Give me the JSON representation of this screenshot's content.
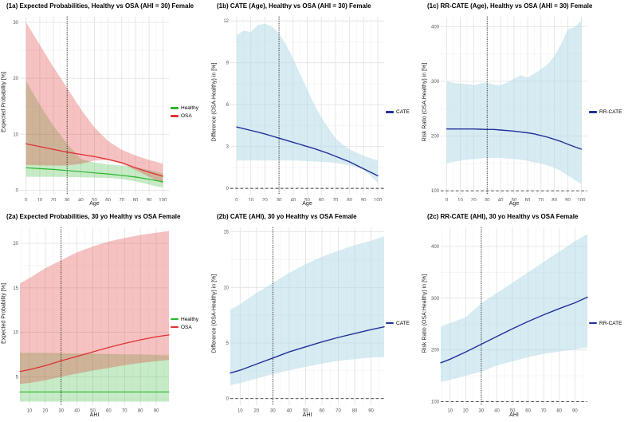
{
  "style": {
    "grid_major": "#e4e4e4",
    "grid_minor": "#f2f2f2",
    "tick_color": "#555555",
    "vline_color": "#1a1a1a",
    "hline_color": "#3a3a3a",
    "healthy_color": "#2db52d",
    "osa_color": "#e03131",
    "cate_color": "#22309b",
    "ribbon_blue": "#ADD8E6"
  },
  "chart_data": {
    "type": "line",
    "layout": "2 rows x 3 cols, ribbons = confidence bands, dotted vline at x=30 in all panels, legend right of each panel",
    "panels": [
      {
        "id": "1a",
        "title": "(1a) Expected Probabilities, Healthy vs OSA (AHI = 30) Female",
        "xlab": "Age",
        "ylab": "Expected Probability [%]",
        "x_domain": [
          -4.5,
          104.5
        ],
        "y_domain": [
          -0.8,
          31
        ],
        "x_ticks": [
          0,
          10,
          20,
          30,
          40,
          50,
          60,
          70,
          80,
          90,
          100
        ],
        "y_ticks": [
          0,
          10,
          20,
          30
        ],
        "vline": 30,
        "hline": null,
        "x": [
          0,
          10,
          20,
          30,
          40,
          50,
          60,
          70,
          80,
          90,
          100
        ],
        "ribbons": [
          {
            "name": "healthy-band",
            "color": "#2db52d",
            "opacity": 0.27,
            "lo": [
              2.4,
              2.4,
              2.4,
              2.35,
              2.3,
              2.25,
              2.2,
              2.0,
              1.6,
              1.0,
              0.45
            ],
            "hi": [
              19.5,
              15.3,
              11.5,
              8.3,
              5.6,
              4.9,
              4.6,
              4.4,
              4.1,
              3.6,
              3.0
            ]
          },
          {
            "name": "osa-band",
            "color": "#e03131",
            "opacity": 0.3,
            "lo": [
              4.5,
              4.45,
              4.4,
              4.4,
              4.7,
              5.3,
              5.35,
              4.7,
              3.6,
              2.4,
              1.2
            ],
            "hi": [
              30,
              26,
              22,
              18.3,
              14.5,
              11.2,
              8.8,
              7.2,
              6.2,
              5.4,
              4.7
            ]
          }
        ],
        "lines": [
          {
            "name": "Healthy",
            "color": "#2db52d",
            "width": 1.2,
            "y": [
              4.0,
              3.85,
              3.7,
              3.5,
              3.3,
              3.1,
              2.9,
              2.65,
              2.35,
              1.95,
              1.5
            ]
          },
          {
            "name": "OSA",
            "color": "#e03131",
            "width": 1.3,
            "y": [
              8.3,
              7.8,
              7.3,
              6.8,
              6.4,
              6.0,
              5.5,
              4.9,
              4.0,
              3.2,
              2.5
            ]
          }
        ],
        "legend": [
          {
            "label": "Healthy",
            "color": "#2db52d"
          },
          {
            "label": "OSA",
            "color": "#e03131"
          }
        ]
      },
      {
        "id": "1b",
        "title": "(1b) CATE (Age), Healthy vs OSA (AHI = 30) Female",
        "xlab": "Age",
        "ylab": "Difference (OSA-Healthy) in [%]",
        "x_domain": [
          -4.5,
          104.5
        ],
        "y_domain": [
          -0.45,
          12.3
        ],
        "x_ticks": [
          0,
          10,
          20,
          30,
          40,
          50,
          60,
          70,
          80,
          90,
          100
        ],
        "y_ticks": [
          0,
          3,
          6,
          9,
          12
        ],
        "vline": 30,
        "hline": 0,
        "x": [
          0,
          5,
          10,
          15,
          20,
          25,
          30,
          35,
          40,
          45,
          50,
          55,
          60,
          65,
          70,
          75,
          80,
          85,
          90,
          95,
          100
        ],
        "ribbons": [
          {
            "name": "cate-band",
            "color": "#ADD8E6",
            "opacity": 0.5,
            "lo": [
              2.0,
              2.0,
              2.0,
              2.0,
              2.0,
              2.0,
              2.0,
              2.0,
              2.0,
              1.98,
              1.95,
              1.93,
              1.9,
              1.87,
              1.82,
              1.75,
              1.65,
              1.5,
              1.3,
              0.9,
              0.4
            ],
            "hi": [
              11.0,
              11.3,
              11.2,
              11.7,
              11.8,
              11.6,
              11.1,
              10.3,
              9.3,
              8.2,
              7.1,
              6.0,
              5.1,
              4.3,
              3.6,
              3.15,
              2.8,
              2.55,
              2.35,
              2.15,
              2.0
            ]
          }
        ],
        "lines": [
          {
            "name": "CATE",
            "color": "#22309b",
            "width": 1.4,
            "y": [
              4.4,
              4.28,
              4.15,
              4.03,
              3.9,
              3.75,
              3.6,
              3.45,
              3.3,
              3.15,
              3.0,
              2.85,
              2.68,
              2.5,
              2.3,
              2.1,
              1.9,
              1.65,
              1.4,
              1.15,
              0.9
            ]
          }
        ],
        "legend": [
          {
            "label": "CATE",
            "color": "#22309b"
          }
        ]
      },
      {
        "id": "1c",
        "title": "(1c) RR-CATE (Age), Healthy vs OSA (AHI = 30) Female",
        "xlab": "Age",
        "ylab": "Risk Ratio (OSA:Healthy) in [%]",
        "x_domain": [
          -4.5,
          104.5
        ],
        "y_domain": [
          93,
          418
        ],
        "x_ticks": [
          0,
          10,
          20,
          30,
          40,
          50,
          60,
          70,
          80,
          90,
          100
        ],
        "y_ticks": [
          100,
          200,
          300,
          400
        ],
        "vline": 30,
        "hline": 100,
        "x": [
          0,
          5,
          10,
          15,
          20,
          25,
          30,
          35,
          40,
          45,
          50,
          55,
          60,
          65,
          70,
          75,
          80,
          85,
          90,
          95,
          100
        ],
        "ribbons": [
          {
            "name": "rrcate-band",
            "color": "#ADD8E6",
            "opacity": 0.5,
            "lo": [
              150,
              153,
              155,
              157,
              158,
              159,
              160,
              160,
              160,
              159,
              158,
              157,
              155,
              152,
              150,
              146,
              142,
              136,
              128,
              120,
              112
            ],
            "hi": [
              300,
              297,
              296,
              295,
              293,
              296,
              298,
              294,
              293,
              298,
              305,
              311,
              307,
              314,
              322,
              331,
              346,
              368,
              395,
              399,
              411
            ]
          }
        ],
        "lines": [
          {
            "name": "RR-CATE",
            "color": "#22309b",
            "width": 1.4,
            "y": [
              213,
              213,
              213,
              213,
              213,
              212.5,
              212,
              212,
              211,
              210,
              209,
              207.5,
              206,
              204,
              201,
              198,
              194,
              190,
              185,
              180.5,
              176
            ]
          }
        ],
        "legend": [
          {
            "label": "RR-CATE",
            "color": "#22309b"
          }
        ]
      },
      {
        "id": "2a",
        "title": "(2a) Expected Probabilities, 30 yo Healthy vs OSA Female",
        "xlab": "AHI",
        "ylab": "Expected Probability [%]",
        "x_domain": [
          4,
          98
        ],
        "y_domain": [
          1.8,
          21.8
        ],
        "x_ticks": [
          10,
          20,
          30,
          40,
          50,
          60,
          70,
          80,
          90
        ],
        "y_ticks": [
          5,
          10,
          15,
          20
        ],
        "vline": 30,
        "hline": null,
        "x": [
          4,
          10,
          20,
          30,
          40,
          50,
          60,
          70,
          80,
          90,
          98
        ],
        "ribbons": [
          {
            "name": "healthy-band",
            "color": "#2db52d",
            "opacity": 0.27,
            "lo": [
              2.2,
              2.2,
              2.2,
              2.2,
              2.2,
              2.2,
              2.2,
              2.2,
              2.2,
              2.2,
              2.2
            ],
            "hi": [
              7.7,
              7.7,
              7.7,
              7.65,
              7.6,
              7.6,
              7.55,
              7.5,
              7.5,
              7.45,
              7.4
            ]
          },
          {
            "name": "osa-band",
            "color": "#e03131",
            "opacity": 0.3,
            "lo": [
              4.2,
              4.3,
              4.6,
              5.0,
              5.35,
              5.7,
              6.0,
              6.3,
              6.55,
              6.75,
              6.9
            ],
            "hi": [
              15.5,
              16.1,
              17.2,
              18.1,
              19.0,
              19.65,
              20.2,
              20.6,
              20.95,
              21.2,
              21.4
            ]
          }
        ],
        "lines": [
          {
            "name": "Healthy",
            "color": "#2db52d",
            "width": 1.2,
            "y": [
              3.3,
              3.3,
              3.3,
              3.3,
              3.3,
              3.3,
              3.3,
              3.3,
              3.3,
              3.3,
              3.3
            ]
          },
          {
            "name": "OSA",
            "color": "#e03131",
            "width": 1.3,
            "y": [
              5.6,
              5.8,
              6.25,
              6.8,
              7.3,
              7.8,
              8.3,
              8.75,
              9.15,
              9.5,
              9.7
            ]
          }
        ],
        "legend": [
          {
            "label": "Healthy",
            "color": "#2db52d"
          },
          {
            "label": "OSA",
            "color": "#e03131"
          }
        ]
      },
      {
        "id": "2b",
        "title": "(2b) CATE (AHI), 30 yo Healthy vs OSA Female",
        "xlab": "AHI",
        "ylab": "Difference (OSA-Healthy) in [%]",
        "x_domain": [
          4,
          98
        ],
        "y_domain": [
          -0.6,
          15.4
        ],
        "x_ticks": [
          10,
          20,
          30,
          40,
          50,
          60,
          70,
          80,
          90
        ],
        "y_ticks": [
          0,
          5,
          10,
          15
        ],
        "vline": 30,
        "hline": 0,
        "x": [
          4,
          10,
          20,
          30,
          40,
          50,
          60,
          70,
          80,
          90,
          98
        ],
        "ribbons": [
          {
            "name": "cate-band",
            "color": "#ADD8E6",
            "opacity": 0.5,
            "lo": [
              1.2,
              1.4,
              1.8,
              2.2,
              2.55,
              2.85,
              3.15,
              3.4,
              3.55,
              3.7,
              3.75
            ],
            "hi": [
              8.0,
              8.5,
              9.5,
              10.4,
              11.3,
              12.1,
              12.75,
              13.3,
              13.8,
              14.2,
              14.6
            ]
          }
        ],
        "lines": [
          {
            "name": "CATE",
            "color": "#22309b",
            "width": 1.4,
            "y": [
              2.3,
              2.55,
              3.1,
              3.65,
              4.2,
              4.65,
              5.1,
              5.5,
              5.85,
              6.2,
              6.45
            ]
          }
        ],
        "legend": [
          {
            "label": "CATE",
            "color": "#22309b"
          }
        ]
      },
      {
        "id": "2c",
        "title": "(2c) RR-CATE (AHI), 30 yo Healthy vs OSA Female",
        "xlab": "AHI",
        "ylab": "Risk Ratio (OSA:Healthy) in [%]",
        "x_domain": [
          4,
          98
        ],
        "y_domain": [
          93,
          437
        ],
        "x_ticks": [
          10,
          20,
          30,
          40,
          50,
          60,
          70,
          80,
          90
        ],
        "y_ticks": [
          100,
          200,
          300,
          400
        ],
        "vline": 30,
        "hline": 100,
        "x": [
          4,
          10,
          20,
          30,
          40,
          50,
          60,
          70,
          80,
          90,
          98
        ],
        "ribbons": [
          {
            "name": "rrcate-band",
            "color": "#ADD8E6",
            "opacity": 0.5,
            "lo": [
              138,
              142,
              150,
              158,
              170,
              178,
              186,
              192,
              197,
              201,
              205
            ],
            "hi": [
              245,
              252,
              263,
              290,
              310,
              330,
              350,
              370,
              390,
              410,
              424
            ]
          }
        ],
        "lines": [
          {
            "name": "RR-CATE",
            "color": "#22309b",
            "width": 1.4,
            "y": [
              175,
              182,
              196,
              211,
              226,
              241,
              255,
              268,
              280,
              291,
              302
            ]
          }
        ],
        "legend": [
          {
            "label": "RR-CATE",
            "color": "#22309b"
          }
        ]
      }
    ]
  }
}
